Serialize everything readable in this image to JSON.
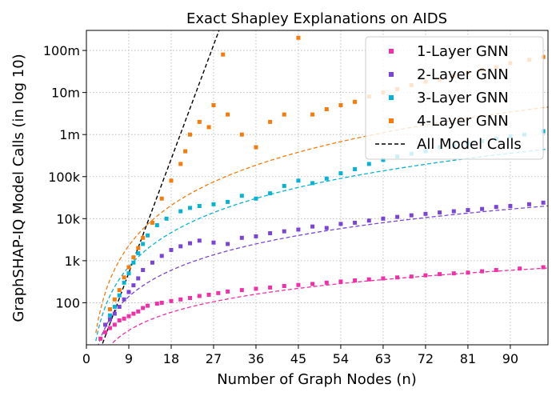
{
  "chart_data": {
    "type": "scatter",
    "title": "Exact Shapley Explanations on AIDS",
    "xlabel": "Number of Graph Nodes (n)",
    "ylabel": "GraphSHAP-IQ Model Calls (in log 10)",
    "x_ticks": [
      0,
      9,
      18,
      27,
      36,
      45,
      54,
      63,
      72,
      81,
      90
    ],
    "xlim": [
      0,
      98
    ],
    "y_scale": "log10",
    "ylim": [
      10,
      300000000
    ],
    "y_ticks": [
      {
        "value": 100,
        "label": "100"
      },
      {
        "value": 1000,
        "label": "1k"
      },
      {
        "value": 10000,
        "label": "10k"
      },
      {
        "value": 100000,
        "label": "100k"
      },
      {
        "value": 1000000,
        "label": "1m"
      },
      {
        "value": 10000000,
        "label": "10m"
      },
      {
        "value": 100000000,
        "label": "100m"
      }
    ],
    "grid": true,
    "legend_position": "top-right",
    "series": [
      {
        "name": "1-Layer GNN",
        "color": "#f02fa8",
        "marker": "square",
        "fit": {
          "a": 0.95,
          "b": 1.43
        },
        "points": [
          [
            3,
            14
          ],
          [
            4,
            20
          ],
          [
            5,
            25
          ],
          [
            6,
            30
          ],
          [
            7,
            38
          ],
          [
            8,
            42
          ],
          [
            9,
            48
          ],
          [
            10,
            55
          ],
          [
            11,
            62
          ],
          [
            12,
            75
          ],
          [
            13,
            85
          ],
          [
            15,
            95
          ],
          [
            16,
            100
          ],
          [
            18,
            110
          ],
          [
            20,
            120
          ],
          [
            22,
            130
          ],
          [
            24,
            145
          ],
          [
            26,
            155
          ],
          [
            28,
            170
          ],
          [
            30,
            185
          ],
          [
            33,
            200
          ],
          [
            36,
            215
          ],
          [
            39,
            230
          ],
          [
            42,
            250
          ],
          [
            45,
            265
          ],
          [
            48,
            280
          ],
          [
            51,
            300
          ],
          [
            54,
            320
          ],
          [
            57,
            340
          ],
          [
            60,
            360
          ],
          [
            63,
            380
          ],
          [
            66,
            400
          ],
          [
            69,
            420
          ],
          [
            72,
            450
          ],
          [
            75,
            480
          ],
          [
            78,
            500
          ],
          [
            81,
            520
          ],
          [
            84,
            560
          ],
          [
            87,
            600
          ],
          [
            92,
            650
          ],
          [
            97,
            700
          ]
        ]
      },
      {
        "name": "2-Layer GNN",
        "color": "#7a45d6",
        "marker": "square",
        "fit": {
          "a": 1.45,
          "b": 2.08
        },
        "points": [
          [
            4,
            30
          ],
          [
            5,
            40
          ],
          [
            6,
            55
          ],
          [
            7,
            80
          ],
          [
            8,
            120
          ],
          [
            9,
            180
          ],
          [
            10,
            260
          ],
          [
            11,
            380
          ],
          [
            12,
            600
          ],
          [
            14,
            900
          ],
          [
            16,
            1300
          ],
          [
            18,
            1800
          ],
          [
            20,
            2200
          ],
          [
            22,
            2600
          ],
          [
            24,
            3000
          ],
          [
            27,
            2700
          ],
          [
            30,
            2500
          ],
          [
            33,
            3500
          ],
          [
            36,
            3800
          ],
          [
            39,
            4500
          ],
          [
            42,
            5000
          ],
          [
            45,
            5500
          ],
          [
            48,
            6500
          ],
          [
            51,
            6000
          ],
          [
            54,
            7500
          ],
          [
            57,
            8000
          ],
          [
            60,
            9000
          ],
          [
            63,
            10000
          ],
          [
            66,
            11000
          ],
          [
            69,
            12000
          ],
          [
            72,
            13000
          ],
          [
            75,
            14000
          ],
          [
            78,
            15000
          ],
          [
            81,
            16000
          ],
          [
            84,
            17000
          ],
          [
            87,
            19000
          ],
          [
            90,
            20000
          ],
          [
            94,
            22000
          ],
          [
            97,
            24000
          ]
        ]
      },
      {
        "name": "3-Layer GNN",
        "color": "#06b3d4",
        "marker": "square",
        "fit": {
          "a": 1.9,
          "b": 2.7
        },
        "points": [
          [
            5,
            50
          ],
          [
            6,
            80
          ],
          [
            7,
            150
          ],
          [
            8,
            300
          ],
          [
            9,
            500
          ],
          [
            10,
            900
          ],
          [
            11,
            1500
          ],
          [
            12,
            2500
          ],
          [
            13,
            4000
          ],
          [
            15,
            7000
          ],
          [
            17,
            10000
          ],
          [
            20,
            15000
          ],
          [
            22,
            18000
          ],
          [
            24,
            20000
          ],
          [
            27,
            22000
          ],
          [
            30,
            25000
          ],
          [
            33,
            35000
          ],
          [
            36,
            30000
          ],
          [
            39,
            40000
          ],
          [
            42,
            60000
          ],
          [
            45,
            80000
          ],
          [
            48,
            70000
          ],
          [
            51,
            90000
          ],
          [
            54,
            120000
          ],
          [
            57,
            150000
          ],
          [
            60,
            200000
          ],
          [
            63,
            250000
          ],
          [
            66,
            300000
          ],
          [
            69,
            350000
          ],
          [
            72,
            400000
          ],
          [
            75,
            500000
          ],
          [
            78,
            550000
          ],
          [
            81,
            600000
          ],
          [
            84,
            700000
          ],
          [
            87,
            800000
          ],
          [
            90,
            900000
          ],
          [
            93,
            1000000
          ],
          [
            97,
            1200000
          ]
        ]
      },
      {
        "name": "4-Layer GNN",
        "color": "#f57b0a",
        "marker": "square",
        "fit": {
          "a": 2.1,
          "b": 3.18
        },
        "points": [
          [
            5,
            70
          ],
          [
            6,
            120
          ],
          [
            7,
            200
          ],
          [
            8,
            400
          ],
          [
            9,
            700
          ],
          [
            10,
            1200
          ],
          [
            11,
            2000
          ],
          [
            12,
            3500
          ],
          [
            14,
            8000
          ],
          [
            16,
            30000
          ],
          [
            18,
            80000
          ],
          [
            20,
            200000
          ],
          [
            21,
            400000
          ],
          [
            22,
            1000000
          ],
          [
            24,
            2000000
          ],
          [
            26,
            1500000
          ],
          [
            27,
            5000000
          ],
          [
            29,
            80000000
          ],
          [
            30,
            3000000
          ],
          [
            33,
            1000000
          ],
          [
            36,
            500000
          ],
          [
            39,
            2000000
          ],
          [
            42,
            3000000
          ],
          [
            45,
            200000000
          ],
          [
            48,
            3000000
          ],
          [
            51,
            4000000
          ],
          [
            54,
            5000000
          ],
          [
            57,
            6000000
          ],
          [
            60,
            8000000
          ],
          [
            63,
            10000000
          ],
          [
            66,
            12000000
          ],
          [
            69,
            15000000
          ],
          [
            72,
            18000000
          ],
          [
            75,
            20000000
          ],
          [
            78,
            25000000
          ],
          [
            81,
            30000000
          ],
          [
            84,
            35000000
          ],
          [
            87,
            40000000
          ],
          [
            90,
            50000000
          ],
          [
            94,
            60000000
          ],
          [
            97,
            70000000
          ]
        ]
      },
      {
        "name": "All Model Calls",
        "color": "#000000",
        "line": "dashed",
        "formula": "2^n"
      }
    ]
  }
}
